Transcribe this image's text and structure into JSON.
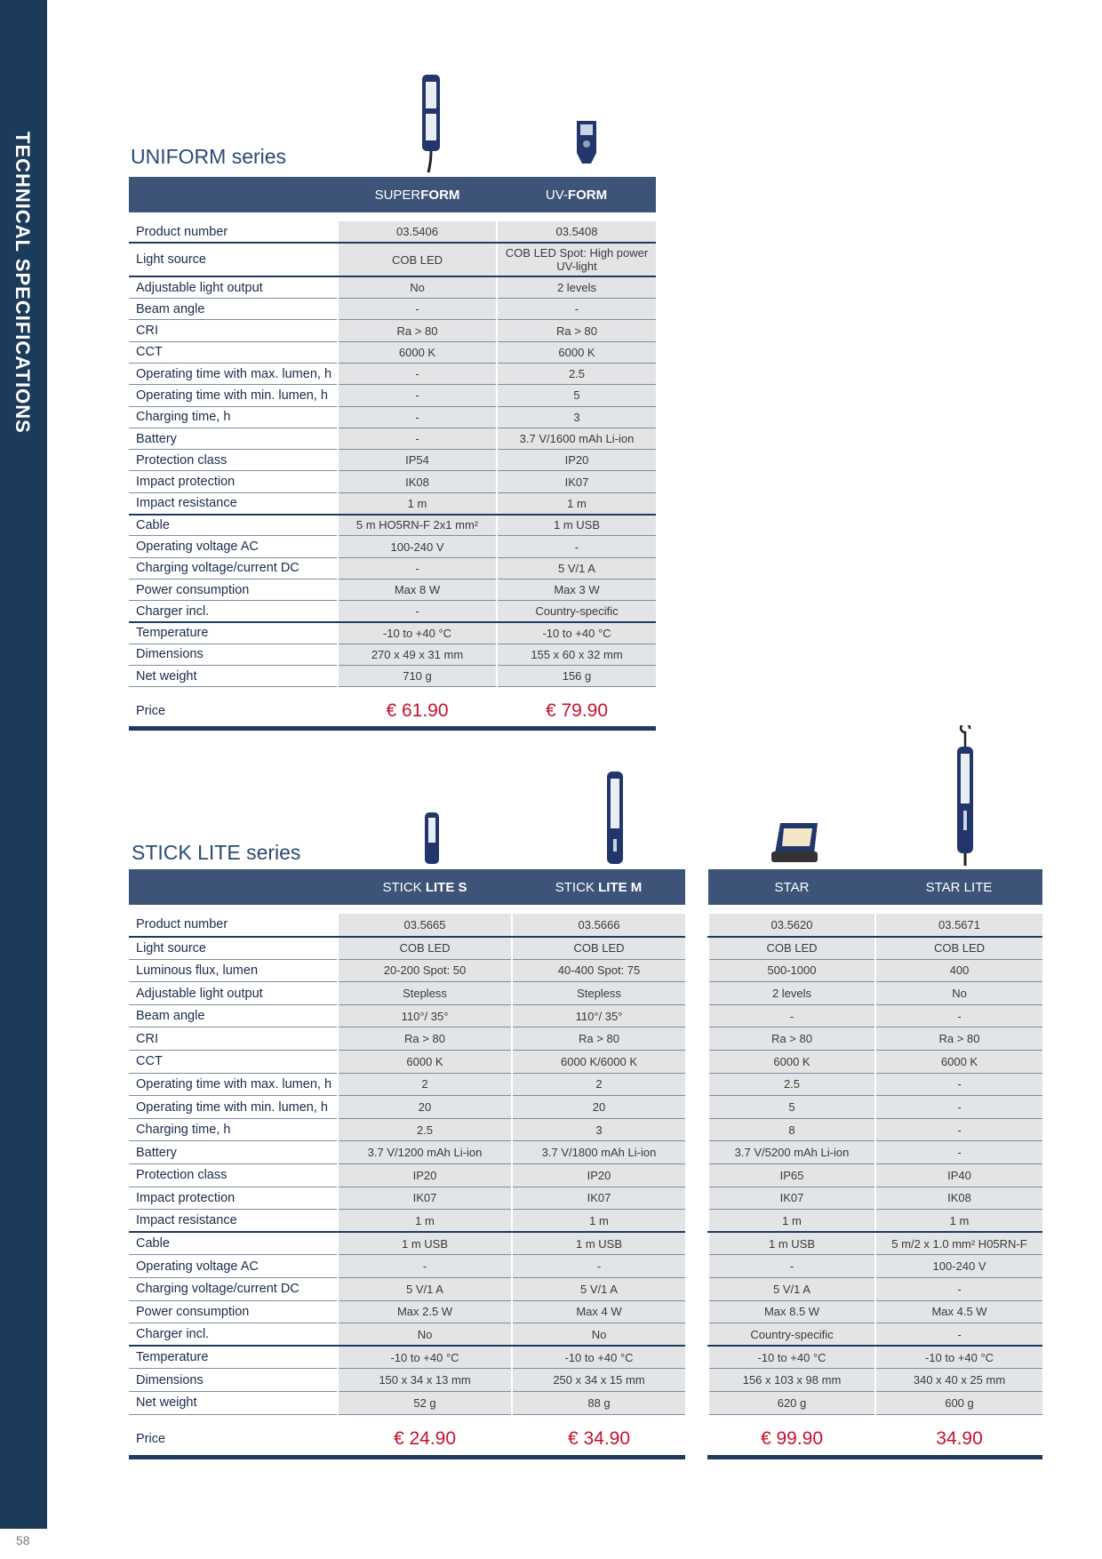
{
  "sidebar": {
    "title": "TECHNICAL SPECIFICATIONS"
  },
  "page_number": "58",
  "uniform": {
    "title": "UNIFORM series",
    "products": [
      {
        "name_light": "SUPER",
        "name_bold": "FORM",
        "price": "€ 61.90"
      },
      {
        "name_light": "UV-",
        "name_bold": "FORM",
        "price": "€ 79.90"
      }
    ],
    "rows": [
      {
        "label": "Product number",
        "v": [
          "03.5406",
          "03.5408"
        ]
      },
      {
        "label": "Light source",
        "v": [
          "COB LED",
          "COB LED Spot: High power UV-light"
        ]
      },
      {
        "label": "Adjustable light output",
        "v": [
          "No",
          "2 levels"
        ]
      },
      {
        "label": "Beam angle",
        "v": [
          "-",
          "-"
        ]
      },
      {
        "label": "CRI",
        "v": [
          "Ra > 80",
          "Ra > 80"
        ]
      },
      {
        "label": "CCT",
        "v": [
          "6000 K",
          "6000 K"
        ]
      },
      {
        "label": "Operating time with max. lumen, h",
        "v": [
          "-",
          "2.5"
        ]
      },
      {
        "label": "Operating time with min. lumen, h",
        "v": [
          "-",
          "5"
        ]
      },
      {
        "label": "Charging time, h",
        "v": [
          "-",
          "3"
        ]
      },
      {
        "label": "Battery",
        "v": [
          "-",
          "3.7 V/1600 mAh Li-ion"
        ]
      },
      {
        "label": "Protection class",
        "v": [
          "IP54",
          "IP20"
        ]
      },
      {
        "label": "Impact protection",
        "v": [
          "IK08",
          "IK07"
        ]
      },
      {
        "label": "Impact resistance",
        "v": [
          "1 m",
          "1 m"
        ]
      },
      {
        "label": "Cable",
        "v": [
          "5 m HO5RN-F 2x1 mm²",
          "1 m USB"
        ]
      },
      {
        "label": "Operating voltage AC",
        "v": [
          "100-240 V",
          "-"
        ]
      },
      {
        "label": "Charging voltage/current DC",
        "v": [
          "-",
          "5 V/1 A"
        ]
      },
      {
        "label": "Power consumption",
        "v": [
          "Max 8 W",
          "Max 3 W"
        ]
      },
      {
        "label": "Charger incl.",
        "v": [
          "-",
          "Country-specific"
        ]
      },
      {
        "label": "Temperature",
        "v": [
          "-10 to +40 °C",
          "-10 to +40 °C"
        ]
      },
      {
        "label": "Dimensions",
        "v": [
          "270 x 49 x 31 mm",
          "155 x 60 x 32 mm"
        ]
      },
      {
        "label": "Net weight",
        "v": [
          "710 g",
          "156 g"
        ]
      }
    ],
    "price_label": "Price"
  },
  "sticklite": {
    "title": "STICK LITE series",
    "products": [
      {
        "name_light": "STICK ",
        "name_bold": "LITE S",
        "price": "€ 24.90"
      },
      {
        "name_light": "STICK ",
        "name_bold": "LITE M",
        "price": "€ 34.90"
      },
      {
        "name_light": "STAR",
        "name_bold": "",
        "price": "€ 99.90"
      },
      {
        "name_light": "STAR LITE",
        "name_bold": "",
        "price": "34.90"
      }
    ],
    "rows": [
      {
        "label": "Product number",
        "v": [
          "03.5665",
          "03.5666",
          "03.5620",
          "03.5671"
        ]
      },
      {
        "label": "Light source",
        "v": [
          "COB LED",
          "COB LED",
          "COB LED",
          "COB LED"
        ]
      },
      {
        "label": "Luminous flux, lumen",
        "v": [
          "20-200 Spot: 50",
          "40-400 Spot: 75",
          "500-1000",
          "400"
        ]
      },
      {
        "label": "Adjustable light output",
        "v": [
          "Stepless",
          "Stepless",
          "2 levels",
          "No"
        ]
      },
      {
        "label": "Beam angle",
        "v": [
          "110°/ 35°",
          "110°/ 35°",
          "-",
          "-"
        ]
      },
      {
        "label": "CRI",
        "v": [
          "Ra > 80",
          "Ra > 80",
          "Ra > 80",
          "Ra > 80"
        ]
      },
      {
        "label": "CCT",
        "v": [
          "6000 K",
          "6000 K/6000 K",
          "6000 K",
          "6000 K"
        ]
      },
      {
        "label": "Operating time with max. lumen, h",
        "v": [
          "2",
          "2",
          "2.5",
          "-"
        ]
      },
      {
        "label": "Operating time with min. lumen, h",
        "v": [
          "20",
          "20",
          "5",
          "-"
        ]
      },
      {
        "label": "Charging time, h",
        "v": [
          "2.5",
          "3",
          "8",
          "-"
        ]
      },
      {
        "label": "Battery",
        "v": [
          "3.7 V/1200 mAh Li-ion",
          "3.7 V/1800 mAh Li-ion",
          "3.7 V/5200 mAh Li-ion",
          "-"
        ]
      },
      {
        "label": "Protection class",
        "v": [
          "IP20",
          "IP20",
          "IP65",
          "IP40"
        ]
      },
      {
        "label": "Impact protection",
        "v": [
          "IK07",
          "IK07",
          "IK07",
          "IK08"
        ]
      },
      {
        "label": "Impact resistance",
        "v": [
          "1 m",
          "1 m",
          "1 m",
          "1 m"
        ]
      },
      {
        "label": "Cable",
        "v": [
          "1 m USB",
          "1 m USB",
          "1 m USB",
          "5 m/2 x 1.0 mm² H05RN-F"
        ]
      },
      {
        "label": "Operating voltage AC",
        "v": [
          "-",
          "-",
          "-",
          "100-240 V"
        ]
      },
      {
        "label": "Charging voltage/current DC",
        "v": [
          "5 V/1 A",
          "5 V/1 A",
          "5 V/1 A",
          "-"
        ]
      },
      {
        "label": "Power consumption",
        "v": [
          "Max 2.5 W",
          "Max 4 W",
          "Max 8.5 W",
          "Max 4.5 W"
        ]
      },
      {
        "label": "Charger incl.",
        "v": [
          "No",
          "No",
          "Country-specific",
          "-"
        ]
      },
      {
        "label": "Temperature",
        "v": [
          "-10 to +40 °C",
          "-10 to +40 °C",
          "-10 to +40 °C",
          "-10 to +40 °C"
        ]
      },
      {
        "label": "Dimensions",
        "v": [
          "150 x 34 x 13 mm",
          "250 x 34 x 15 mm",
          "156 x 103 x 98 mm",
          "340 x 40 x 25 mm"
        ]
      },
      {
        "label": "Net weight",
        "v": [
          "52 g",
          "88 g",
          "620 g",
          "600 g"
        ]
      }
    ],
    "price_label": "Price"
  },
  "colors": {
    "header_bg": "#3d5478",
    "sidebar_bg": "#1c3b5b",
    "price_red": "#c8102e",
    "cell_bg": "#e3e4e6"
  }
}
